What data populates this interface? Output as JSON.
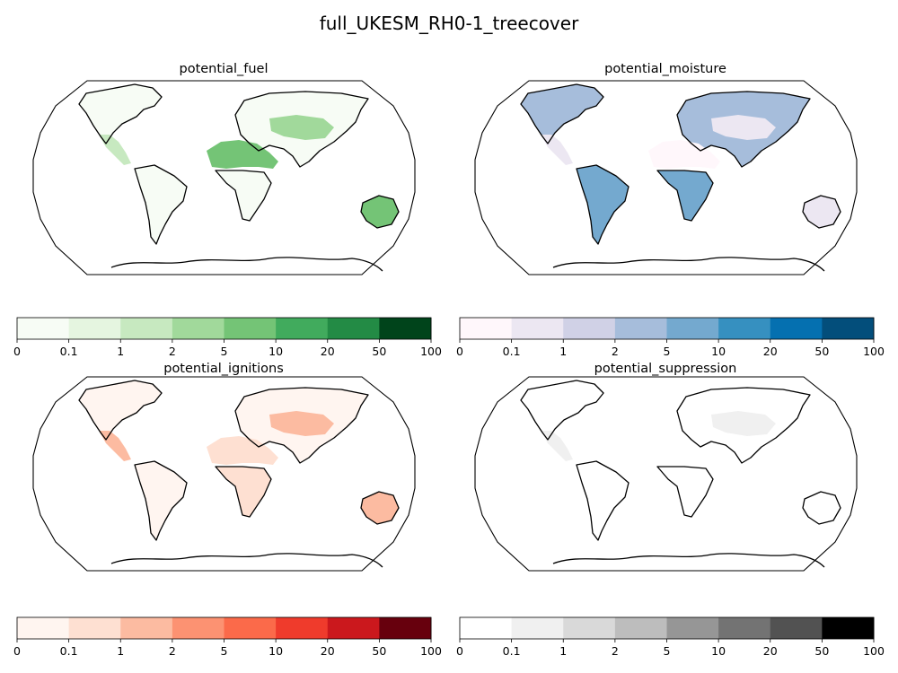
{
  "figure": {
    "title": "full_UKESM_RH0-1_treecover"
  },
  "colorbar": {
    "boundaries": [
      "0",
      "0.1",
      "1",
      "2",
      "5",
      "10",
      "20",
      "50",
      "100"
    ]
  },
  "chart_data": [
    {
      "type": "heatmap",
      "title": "potential_fuel",
      "projection": "Robinson",
      "colormap": "Greens",
      "colors": [
        "#f7fcf5",
        "#e5f5e0",
        "#c7e9c0",
        "#a1d99b",
        "#74c476",
        "#41ab5d",
        "#238b45",
        "#00441b"
      ],
      "levels": [
        "0",
        "0.1",
        "1",
        "2",
        "5",
        "10",
        "20",
        "50",
        "100"
      ],
      "regions": [
        {
          "name": "north-america",
          "bin": 0
        },
        {
          "name": "mexico-us-southwest",
          "bin": 2
        },
        {
          "name": "south-america",
          "bin": 0
        },
        {
          "name": "eurasia",
          "bin": 0
        },
        {
          "name": "central-asia",
          "bin": 3
        },
        {
          "name": "sahara-arabia",
          "bin": 4
        },
        {
          "name": "africa-south",
          "bin": 0
        },
        {
          "name": "australia",
          "bin": 4
        }
      ]
    },
    {
      "type": "heatmap",
      "title": "potential_moisture",
      "projection": "Robinson",
      "colormap": "PuBu",
      "colors": [
        "#fff7fb",
        "#ece7f2",
        "#d0d1e6",
        "#a6bddb",
        "#74a9cf",
        "#3690c0",
        "#0570b0",
        "#034e7b"
      ],
      "levels": [
        "0",
        "0.1",
        "1",
        "2",
        "5",
        "10",
        "20",
        "50",
        "100"
      ],
      "regions": [
        {
          "name": "north-america",
          "bin": 3
        },
        {
          "name": "mexico-us-southwest",
          "bin": 1
        },
        {
          "name": "south-america",
          "bin": 4
        },
        {
          "name": "eurasia",
          "bin": 3
        },
        {
          "name": "central-asia",
          "bin": 1
        },
        {
          "name": "sahara-arabia",
          "bin": 0
        },
        {
          "name": "africa-south",
          "bin": 4
        },
        {
          "name": "australia",
          "bin": 1
        }
      ]
    },
    {
      "type": "heatmap",
      "title": "potential_ignitions",
      "projection": "Robinson",
      "colormap": "Reds",
      "colors": [
        "#fff5f0",
        "#fee0d2",
        "#fcbba1",
        "#fc9272",
        "#fb6a4a",
        "#ef3b2c",
        "#cb181d",
        "#67000d"
      ],
      "levels": [
        "0",
        "0.1",
        "1",
        "2",
        "5",
        "10",
        "20",
        "50",
        "100"
      ],
      "regions": [
        {
          "name": "north-america",
          "bin": 0
        },
        {
          "name": "mexico-us-southwest",
          "bin": 2
        },
        {
          "name": "south-america",
          "bin": 0
        },
        {
          "name": "eurasia",
          "bin": 0
        },
        {
          "name": "central-asia",
          "bin": 2
        },
        {
          "name": "sahara-arabia",
          "bin": 1
        },
        {
          "name": "africa-south",
          "bin": 1
        },
        {
          "name": "australia",
          "bin": 2
        }
      ]
    },
    {
      "type": "heatmap",
      "title": "potential_suppression",
      "projection": "Robinson",
      "colormap": "Greys",
      "colors": [
        "#ffffff",
        "#f0f0f0",
        "#d9d9d9",
        "#bdbdbd",
        "#969696",
        "#737373",
        "#525252",
        "#000000"
      ],
      "levels": [
        "0",
        "0.1",
        "1",
        "2",
        "5",
        "10",
        "20",
        "50",
        "100"
      ],
      "regions": [
        {
          "name": "north-america",
          "bin": 0
        },
        {
          "name": "mexico-us-southwest",
          "bin": 1
        },
        {
          "name": "south-america",
          "bin": 0
        },
        {
          "name": "eurasia",
          "bin": 0
        },
        {
          "name": "central-asia",
          "bin": 1
        },
        {
          "name": "sahara-arabia",
          "bin": 0
        },
        {
          "name": "africa-south",
          "bin": 0
        },
        {
          "name": "australia",
          "bin": 0
        }
      ]
    }
  ]
}
